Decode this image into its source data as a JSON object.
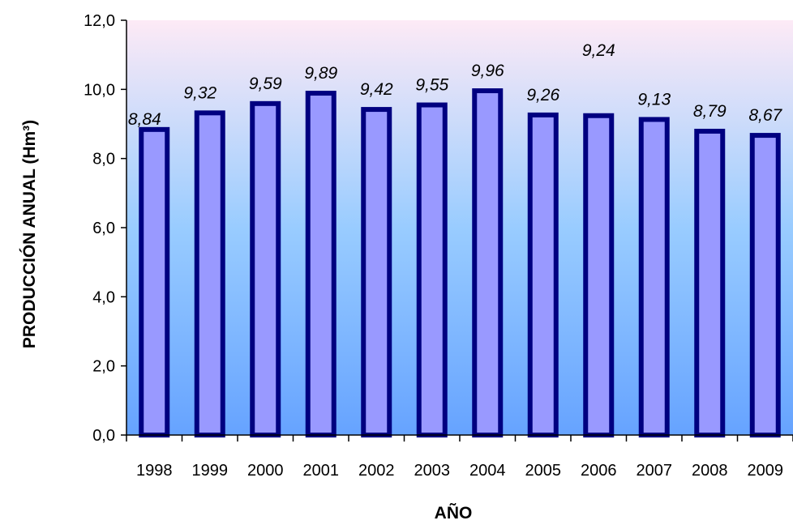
{
  "chart_data": {
    "type": "bar",
    "categories": [
      "1998",
      "1999",
      "2000",
      "2001",
      "2002",
      "2003",
      "2004",
      "2005",
      "2006",
      "2007",
      "2008",
      "2009"
    ],
    "values": [
      8.84,
      9.32,
      9.59,
      9.89,
      9.42,
      9.55,
      9.96,
      9.26,
      9.24,
      9.13,
      8.79,
      8.67
    ],
    "data_labels": [
      "8,84",
      "9,32",
      "9,59",
      "9,89",
      "9,42",
      "9,55",
      "9,96",
      "9,26",
      "9,24",
      "9,13",
      "8,79",
      "8,67"
    ],
    "xlabel": "AÑO",
    "ylabel": "PRODUCCIÓN  ANUAL  (Hm³)",
    "ylim": [
      0,
      12
    ],
    "yticks": [
      0,
      2,
      4,
      6,
      8,
      10,
      12
    ],
    "ytick_labels": [
      "0,0",
      "2,0",
      "4,0",
      "6,0",
      "8,0",
      "10,0",
      "12,0"
    ],
    "grid": false,
    "legend": "none",
    "colors": {
      "bar_fill": "#9999ff",
      "bar_border": "#000080",
      "background_top": "#fdeaf6",
      "background_mid": "#99ccff",
      "background_bottom": "#66a3ff"
    }
  }
}
